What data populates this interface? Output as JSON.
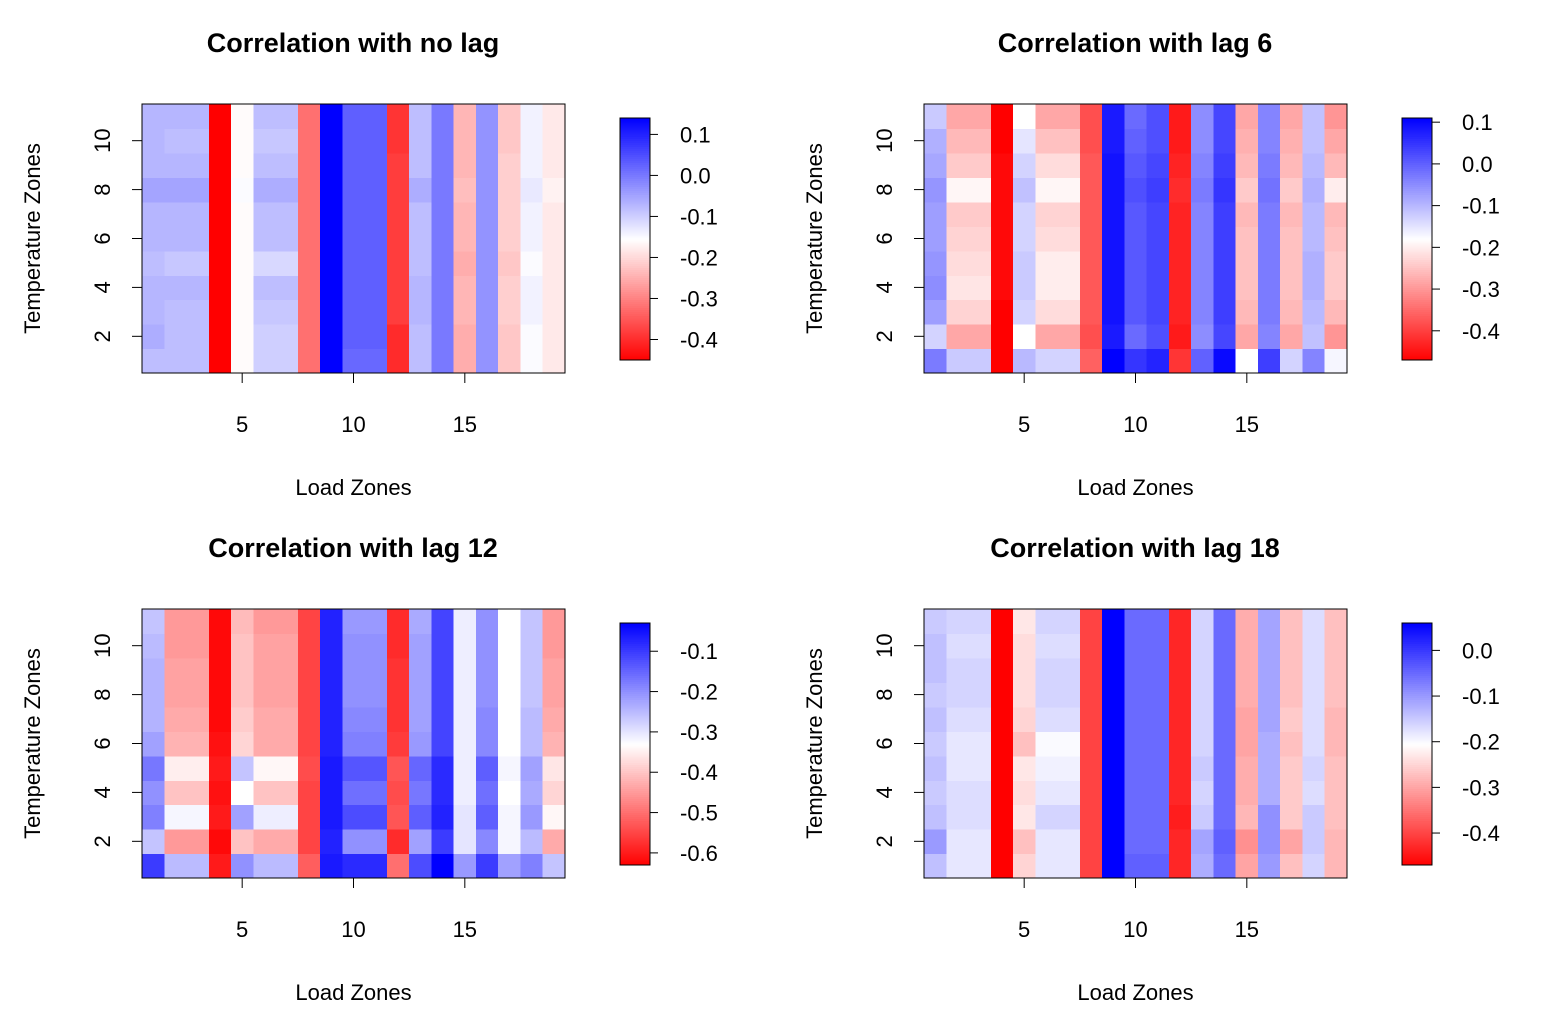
{
  "chart_data": [
    {
      "type": "heatmap",
      "title": "Correlation with no lag",
      "xlabel": "Load Zones",
      "ylabel": "Temperature Zones",
      "x_ticks": [
        5,
        10,
        15
      ],
      "y_ticks": [
        2,
        4,
        6,
        8,
        10
      ],
      "xlim": [
        0.5,
        19.5
      ],
      "ylim": [
        0.5,
        11.5
      ],
      "colorbar": {
        "min": -0.45,
        "max": 0.14,
        "ticks": [
          0.1,
          0.0,
          -0.1,
          -0.2,
          -0.3,
          -0.4
        ],
        "tick_labels": [
          "0.1",
          "0.0",
          "-0.1",
          "-0.2",
          "-0.3",
          "-0.4"
        ],
        "low_color": "#ff0000",
        "mid_color": "#ffffff",
        "high_color": "#0000ff"
      },
      "values": [
        [
          -0.08,
          -0.08,
          -0.08,
          -0.45,
          -0.16,
          -0.1,
          -0.1,
          -0.32,
          0.14,
          0.02,
          0.02,
          -0.4,
          -0.08,
          0.0,
          -0.25,
          -0.03,
          -0.22,
          -0.15,
          -0.18
        ],
        [
          -0.06,
          -0.08,
          -0.08,
          -0.45,
          -0.16,
          -0.1,
          -0.1,
          -0.32,
          0.14,
          0.03,
          0.03,
          -0.4,
          -0.08,
          0.0,
          -0.25,
          -0.03,
          -0.22,
          -0.15,
          -0.18
        ],
        [
          -0.07,
          -0.08,
          -0.08,
          -0.45,
          -0.16,
          -0.09,
          -0.09,
          -0.32,
          0.14,
          0.03,
          0.03,
          -0.38,
          -0.07,
          0.0,
          -0.24,
          -0.03,
          -0.21,
          -0.14,
          -0.18
        ],
        [
          -0.07,
          -0.07,
          -0.07,
          -0.45,
          -0.16,
          -0.08,
          -0.08,
          -0.32,
          0.14,
          0.03,
          0.03,
          -0.38,
          -0.07,
          0.0,
          -0.24,
          -0.03,
          -0.21,
          -0.14,
          -0.18
        ],
        [
          -0.08,
          -0.09,
          -0.09,
          -0.45,
          -0.16,
          -0.11,
          -0.11,
          -0.32,
          0.14,
          0.03,
          0.03,
          -0.38,
          -0.08,
          0.0,
          -0.25,
          -0.03,
          -0.22,
          -0.15,
          -0.18
        ],
        [
          -0.07,
          -0.07,
          -0.07,
          -0.45,
          -0.16,
          -0.08,
          -0.08,
          -0.32,
          0.14,
          0.03,
          0.03,
          -0.38,
          -0.08,
          0.0,
          -0.24,
          -0.03,
          -0.21,
          -0.14,
          -0.18
        ],
        [
          -0.07,
          -0.07,
          -0.07,
          -0.45,
          -0.16,
          -0.08,
          -0.08,
          -0.32,
          0.14,
          0.03,
          0.03,
          -0.38,
          -0.08,
          0.0,
          -0.24,
          -0.03,
          -0.21,
          -0.14,
          -0.18
        ],
        [
          -0.05,
          -0.05,
          -0.05,
          -0.45,
          -0.15,
          -0.06,
          -0.06,
          -0.32,
          0.14,
          0.03,
          0.03,
          -0.38,
          -0.06,
          0.0,
          -0.23,
          -0.03,
          -0.21,
          -0.13,
          -0.17
        ],
        [
          -0.07,
          -0.07,
          -0.07,
          -0.45,
          -0.16,
          -0.08,
          -0.08,
          -0.32,
          0.14,
          0.03,
          0.03,
          -0.38,
          -0.08,
          0.0,
          -0.24,
          -0.03,
          -0.21,
          -0.14,
          -0.18
        ],
        [
          -0.07,
          -0.08,
          -0.08,
          -0.45,
          -0.16,
          -0.09,
          -0.09,
          -0.32,
          0.14,
          0.03,
          0.03,
          -0.39,
          -0.08,
          0.0,
          -0.24,
          -0.03,
          -0.22,
          -0.14,
          -0.18
        ],
        [
          -0.07,
          -0.07,
          -0.07,
          -0.45,
          -0.16,
          -0.08,
          -0.08,
          -0.32,
          0.14,
          0.03,
          0.03,
          -0.39,
          -0.08,
          0.0,
          -0.24,
          -0.03,
          -0.22,
          -0.14,
          -0.18
        ]
      ]
    },
    {
      "type": "heatmap",
      "title": "Correlation with lag 6",
      "xlabel": "Load Zones",
      "ylabel": "Temperature Zones",
      "x_ticks": [
        5,
        10,
        15
      ],
      "y_ticks": [
        2,
        4,
        6,
        8,
        10
      ],
      "xlim": [
        0.5,
        19.5
      ],
      "ylim": [
        0.5,
        11.5
      ],
      "colorbar": {
        "min": -0.47,
        "max": 0.11,
        "ticks": [
          0.1,
          0.0,
          -0.1,
          -0.2,
          -0.3,
          -0.4
        ],
        "tick_labels": [
          "0.1",
          "0.0",
          "-0.1",
          "-0.2",
          "-0.3",
          "-0.4"
        ],
        "low_color": "#ff0000",
        "mid_color": "#ffffff",
        "high_color": "#0000ff"
      },
      "values": [
        [
          -0.03,
          -0.12,
          -0.12,
          -0.47,
          -0.1,
          -0.13,
          -0.13,
          -0.36,
          0.11,
          0.05,
          0.07,
          -0.41,
          0.0,
          0.1,
          -0.18,
          0.04,
          -0.13,
          -0.04,
          -0.17
        ],
        [
          -0.13,
          -0.28,
          -0.28,
          -0.47,
          -0.18,
          -0.28,
          -0.28,
          -0.38,
          0.08,
          -0.01,
          0.02,
          -0.44,
          -0.05,
          0.03,
          -0.28,
          -0.04,
          -0.28,
          -0.11,
          -0.3
        ],
        [
          -0.07,
          -0.23,
          -0.23,
          -0.47,
          -0.13,
          -0.22,
          -0.22,
          -0.37,
          0.09,
          0.01,
          0.03,
          -0.43,
          -0.04,
          0.04,
          -0.26,
          -0.03,
          -0.26,
          -0.1,
          -0.26
        ],
        [
          -0.05,
          -0.21,
          -0.21,
          -0.46,
          -0.12,
          -0.2,
          -0.2,
          -0.37,
          0.09,
          0.01,
          0.03,
          -0.43,
          -0.04,
          0.04,
          -0.25,
          -0.03,
          -0.25,
          -0.09,
          -0.24
        ],
        [
          -0.06,
          -0.22,
          -0.22,
          -0.46,
          -0.12,
          -0.2,
          -0.2,
          -0.37,
          0.09,
          0.01,
          0.03,
          -0.43,
          -0.04,
          0.04,
          -0.25,
          -0.03,
          -0.25,
          -0.09,
          -0.24
        ],
        [
          -0.07,
          -0.23,
          -0.23,
          -0.46,
          -0.13,
          -0.22,
          -0.22,
          -0.37,
          0.09,
          0.01,
          0.03,
          -0.43,
          -0.04,
          0.04,
          -0.25,
          -0.03,
          -0.25,
          -0.1,
          -0.25
        ],
        [
          -0.07,
          -0.24,
          -0.24,
          -0.46,
          -0.13,
          -0.23,
          -0.23,
          -0.37,
          0.09,
          0.01,
          0.03,
          -0.43,
          -0.04,
          0.04,
          -0.26,
          -0.03,
          -0.26,
          -0.1,
          -0.26
        ],
        [
          -0.06,
          -0.19,
          -0.19,
          -0.46,
          -0.11,
          -0.19,
          -0.19,
          -0.37,
          0.09,
          0.02,
          0.04,
          -0.42,
          -0.03,
          0.05,
          -0.24,
          -0.02,
          -0.24,
          -0.09,
          -0.2
        ],
        [
          -0.08,
          -0.24,
          -0.24,
          -0.46,
          -0.13,
          -0.22,
          -0.22,
          -0.37,
          0.09,
          0.01,
          0.03,
          -0.43,
          -0.04,
          0.04,
          -0.26,
          -0.03,
          -0.26,
          -0.1,
          -0.26
        ],
        [
          -0.09,
          -0.26,
          -0.26,
          -0.47,
          -0.15,
          -0.25,
          -0.25,
          -0.38,
          0.08,
          0.0,
          0.02,
          -0.44,
          -0.05,
          0.03,
          -0.27,
          -0.04,
          -0.27,
          -0.11,
          -0.28
        ],
        [
          -0.12,
          -0.28,
          -0.28,
          -0.47,
          -0.18,
          -0.28,
          -0.28,
          -0.38,
          0.08,
          -0.01,
          0.02,
          -0.44,
          -0.05,
          0.03,
          -0.28,
          -0.04,
          -0.28,
          -0.11,
          -0.3
        ]
      ]
    },
    {
      "type": "heatmap",
      "title": "Correlation with lag 12",
      "xlabel": "Load Zones",
      "ylabel": "Temperature Zones",
      "x_ticks": [
        5,
        10,
        15
      ],
      "y_ticks": [
        2,
        4,
        6,
        8,
        10
      ],
      "xlim": [
        0.5,
        19.5
      ],
      "ylim": [
        0.5,
        11.5
      ],
      "colorbar": {
        "min": -0.63,
        "max": -0.03,
        "ticks": [
          -0.1,
          -0.2,
          -0.3,
          -0.4,
          -0.5,
          -0.6
        ],
        "tick_labels": [
          "-0.1",
          "-0.2",
          "-0.3",
          "-0.4",
          "-0.5",
          "-0.6"
        ],
        "low_color": "#ff0000",
        "mid_color": "#ffffff",
        "high_color": "#0000ff"
      },
      "values": [
        [
          -0.1,
          -0.25,
          -0.25,
          -0.6,
          -0.2,
          -0.25,
          -0.25,
          -0.52,
          -0.06,
          -0.08,
          -0.08,
          -0.5,
          -0.12,
          -0.03,
          -0.21,
          -0.1,
          -0.22,
          -0.18,
          -0.26
        ],
        [
          -0.26,
          -0.45,
          -0.45,
          -0.62,
          -0.4,
          -0.43,
          -0.43,
          -0.55,
          -0.07,
          -0.2,
          -0.2,
          -0.58,
          -0.22,
          -0.1,
          -0.3,
          -0.19,
          -0.32,
          -0.25,
          -0.43
        ],
        [
          -0.18,
          -0.32,
          -0.32,
          -0.6,
          -0.22,
          -0.31,
          -0.31,
          -0.55,
          -0.06,
          -0.12,
          -0.12,
          -0.53,
          -0.14,
          -0.07,
          -0.3,
          -0.14,
          -0.32,
          -0.21,
          -0.34
        ],
        [
          -0.2,
          -0.4,
          -0.4,
          -0.61,
          -0.33,
          -0.4,
          -0.4,
          -0.55,
          -0.06,
          -0.16,
          -0.16,
          -0.54,
          -0.17,
          -0.08,
          -0.31,
          -0.16,
          -0.33,
          -0.23,
          -0.38
        ],
        [
          -0.17,
          -0.35,
          -0.35,
          -0.6,
          -0.26,
          -0.34,
          -0.34,
          -0.54,
          -0.06,
          -0.13,
          -0.13,
          -0.53,
          -0.15,
          -0.08,
          -0.31,
          -0.14,
          -0.32,
          -0.22,
          -0.36
        ],
        [
          -0.22,
          -0.42,
          -0.42,
          -0.61,
          -0.38,
          -0.43,
          -0.43,
          -0.55,
          -0.07,
          -0.18,
          -0.18,
          -0.56,
          -0.21,
          -0.11,
          -0.31,
          -0.19,
          -0.33,
          -0.25,
          -0.42
        ],
        [
          -0.24,
          -0.43,
          -0.43,
          -0.62,
          -0.39,
          -0.43,
          -0.43,
          -0.55,
          -0.07,
          -0.19,
          -0.19,
          -0.57,
          -0.22,
          -0.11,
          -0.31,
          -0.19,
          -0.33,
          -0.25,
          -0.43
        ],
        [
          -0.24,
          -0.44,
          -0.44,
          -0.62,
          -0.4,
          -0.44,
          -0.44,
          -0.55,
          -0.07,
          -0.2,
          -0.2,
          -0.57,
          -0.22,
          -0.11,
          -0.31,
          -0.2,
          -0.33,
          -0.26,
          -0.44
        ],
        [
          -0.24,
          -0.44,
          -0.44,
          -0.62,
          -0.4,
          -0.44,
          -0.44,
          -0.55,
          -0.07,
          -0.2,
          -0.2,
          -0.57,
          -0.22,
          -0.11,
          -0.31,
          -0.2,
          -0.33,
          -0.26,
          -0.44
        ],
        [
          -0.25,
          -0.45,
          -0.45,
          -0.62,
          -0.4,
          -0.44,
          -0.44,
          -0.55,
          -0.07,
          -0.2,
          -0.2,
          -0.58,
          -0.22,
          -0.11,
          -0.31,
          -0.2,
          -0.33,
          -0.26,
          -0.45
        ],
        [
          -0.26,
          -0.45,
          -0.45,
          -0.62,
          -0.41,
          -0.45,
          -0.45,
          -0.55,
          -0.07,
          -0.21,
          -0.21,
          -0.58,
          -0.23,
          -0.11,
          -0.31,
          -0.2,
          -0.33,
          -0.26,
          -0.45
        ]
      ]
    },
    {
      "type": "heatmap",
      "title": "Correlation with lag 18",
      "xlabel": "Load Zones",
      "ylabel": "Temperature Zones",
      "x_ticks": [
        5,
        10,
        15
      ],
      "y_ticks": [
        2,
        4,
        6,
        8,
        10
      ],
      "xlim": [
        0.5,
        19.5
      ],
      "ylim": [
        0.5,
        11.5
      ],
      "colorbar": {
        "min": -0.47,
        "max": 0.06,
        "ticks": [
          0.0,
          -0.1,
          -0.2,
          -0.3,
          -0.4
        ],
        "tick_labels": [
          "0.0",
          "-0.1",
          "-0.2",
          "-0.3",
          "-0.4"
        ],
        "low_color": "#ff0000",
        "mid_color": "#ffffff",
        "high_color": "#0000ff"
      },
      "values": [
        [
          -0.14,
          -0.18,
          -0.18,
          -0.47,
          -0.25,
          -0.18,
          -0.18,
          -0.4,
          0.06,
          -0.04,
          -0.04,
          -0.43,
          -0.12,
          -0.05,
          -0.3,
          -0.1,
          -0.27,
          -0.16,
          -0.28
        ],
        [
          -0.1,
          -0.18,
          -0.18,
          -0.47,
          -0.27,
          -0.18,
          -0.18,
          -0.4,
          0.06,
          -0.05,
          -0.05,
          -0.43,
          -0.11,
          -0.04,
          -0.32,
          -0.09,
          -0.3,
          -0.15,
          -0.28
        ],
        [
          -0.14,
          -0.17,
          -0.17,
          -0.47,
          -0.23,
          -0.16,
          -0.16,
          -0.4,
          0.06,
          -0.05,
          -0.05,
          -0.44,
          -0.15,
          -0.05,
          -0.28,
          -0.09,
          -0.26,
          -0.15,
          -0.27
        ],
        [
          -0.15,
          -0.17,
          -0.17,
          -0.47,
          -0.24,
          -0.18,
          -0.18,
          -0.4,
          0.06,
          -0.05,
          -0.05,
          -0.43,
          -0.16,
          -0.05,
          -0.29,
          -0.12,
          -0.26,
          -0.17,
          -0.27
        ],
        [
          -0.14,
          -0.18,
          -0.18,
          -0.47,
          -0.23,
          -0.19,
          -0.19,
          -0.4,
          0.06,
          -0.05,
          -0.05,
          -0.43,
          -0.15,
          -0.05,
          -0.29,
          -0.12,
          -0.26,
          -0.16,
          -0.27
        ],
        [
          -0.15,
          -0.18,
          -0.18,
          -0.47,
          -0.27,
          -0.2,
          -0.2,
          -0.4,
          0.06,
          -0.05,
          -0.05,
          -0.43,
          -0.16,
          -0.05,
          -0.3,
          -0.12,
          -0.27,
          -0.17,
          -0.28
        ],
        [
          -0.14,
          -0.17,
          -0.17,
          -0.47,
          -0.25,
          -0.17,
          -0.17,
          -0.4,
          0.06,
          -0.05,
          -0.05,
          -0.43,
          -0.16,
          -0.05,
          -0.3,
          -0.11,
          -0.26,
          -0.17,
          -0.28
        ],
        [
          -0.15,
          -0.16,
          -0.16,
          -0.47,
          -0.24,
          -0.16,
          -0.16,
          -0.4,
          0.06,
          -0.05,
          -0.05,
          -0.43,
          -0.16,
          -0.05,
          -0.29,
          -0.11,
          -0.27,
          -0.17,
          -0.27
        ],
        [
          -0.14,
          -0.16,
          -0.16,
          -0.47,
          -0.24,
          -0.16,
          -0.16,
          -0.4,
          0.06,
          -0.05,
          -0.05,
          -0.43,
          -0.16,
          -0.05,
          -0.29,
          -0.11,
          -0.27,
          -0.17,
          -0.27
        ],
        [
          -0.14,
          -0.17,
          -0.17,
          -0.47,
          -0.24,
          -0.17,
          -0.17,
          -0.4,
          0.06,
          -0.05,
          -0.05,
          -0.43,
          -0.16,
          -0.05,
          -0.29,
          -0.11,
          -0.27,
          -0.17,
          -0.27
        ],
        [
          -0.15,
          -0.16,
          -0.16,
          -0.47,
          -0.23,
          -0.16,
          -0.16,
          -0.4,
          0.06,
          -0.05,
          -0.05,
          -0.43,
          -0.16,
          -0.05,
          -0.29,
          -0.11,
          -0.27,
          -0.17,
          -0.27
        ]
      ]
    }
  ]
}
